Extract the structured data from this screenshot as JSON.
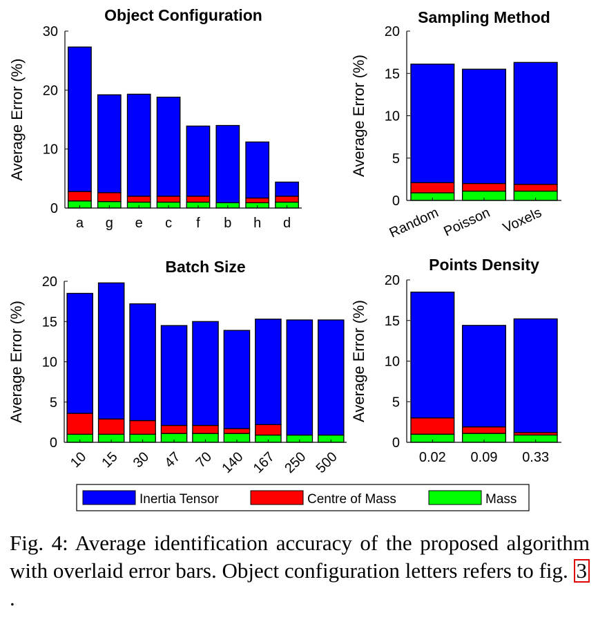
{
  "chart_data": [
    {
      "type": "bar",
      "stacked": true,
      "title": "Object Configuration",
      "ylabel": "Average Error (%)",
      "xlabel": "",
      "ylim": [
        0,
        30
      ],
      "yticks": [
        0,
        10,
        20,
        30
      ],
      "categories": [
        "a",
        "g",
        "e",
        "c",
        "f",
        "b",
        "h",
        "d"
      ],
      "series": [
        {
          "name": "Mass",
          "values": [
            1.2,
            1.1,
            1.0,
            1.0,
            1.0,
            0.9,
            0.9,
            1.0
          ]
        },
        {
          "name": "Centre of Mass",
          "values": [
            1.6,
            1.5,
            1.0,
            1.0,
            1.0,
            0.0,
            0.8,
            1.0
          ]
        },
        {
          "name": "Inertia Tensor",
          "values": [
            24.5,
            16.6,
            17.3,
            16.8,
            11.9,
            13.1,
            9.5,
            2.4
          ]
        }
      ]
    },
    {
      "type": "bar",
      "stacked": true,
      "title": "Sampling Method",
      "ylabel": "Average Error (%)",
      "xlabel": "",
      "ylim": [
        0,
        20
      ],
      "yticks": [
        0,
        5,
        10,
        15,
        20
      ],
      "tick_rotation": 25,
      "categories": [
        "Random",
        "Poisson",
        "Voxels"
      ],
      "series": [
        {
          "name": "Mass",
          "values": [
            0.9,
            1.1,
            1.1
          ]
        },
        {
          "name": "Centre of Mass",
          "values": [
            1.2,
            0.9,
            0.8
          ]
        },
        {
          "name": "Inertia Tensor",
          "values": [
            14.0,
            13.5,
            14.4
          ]
        }
      ]
    },
    {
      "type": "bar",
      "stacked": true,
      "title": "Batch Size",
      "ylabel": "Average Error (%)",
      "xlabel": "",
      "ylim": [
        0,
        20
      ],
      "yticks": [
        0,
        5,
        10,
        15,
        20
      ],
      "tick_rotation": 45,
      "categories": [
        "10",
        "15",
        "30",
        "47",
        "70",
        "140",
        "167",
        "250",
        "500"
      ],
      "series": [
        {
          "name": "Mass",
          "values": [
            1.0,
            1.0,
            1.0,
            1.1,
            1.1,
            1.1,
            0.9,
            0.9,
            0.9
          ]
        },
        {
          "name": "Centre of Mass",
          "values": [
            2.6,
            1.9,
            1.7,
            1.0,
            1.0,
            0.6,
            1.3,
            0.0,
            0.0
          ]
        },
        {
          "name": "Inertia Tensor",
          "values": [
            14.9,
            16.9,
            14.5,
            12.4,
            12.9,
            12.2,
            13.1,
            14.3,
            14.3
          ]
        }
      ]
    },
    {
      "type": "bar",
      "stacked": true,
      "title": "Points Density",
      "ylabel": "Average Error (%)",
      "xlabel": "",
      "ylim": [
        0,
        20
      ],
      "yticks": [
        0,
        5,
        10,
        15,
        20
      ],
      "categories": [
        "0.02",
        "0.09",
        "0.33"
      ],
      "series": [
        {
          "name": "Mass",
          "values": [
            1.0,
            1.1,
            0.9
          ]
        },
        {
          "name": "Centre of Mass",
          "values": [
            2.0,
            0.8,
            0.3
          ]
        },
        {
          "name": "Inertia Tensor",
          "values": [
            15.5,
            12.5,
            14.0
          ]
        }
      ]
    }
  ],
  "legend": {
    "items": [
      {
        "label": "Inertia Tensor",
        "color": "#0000ff"
      },
      {
        "label": "Centre of Mass",
        "color": "#ff0000"
      },
      {
        "label": "Mass",
        "color": "#00ff00"
      }
    ]
  },
  "colors": {
    "Inertia Tensor": "#0000ff",
    "Centre of Mass": "#ff0000",
    "Mass": "#00ff00"
  },
  "caption": {
    "text": "Fig. 4: Average identification accuracy of the proposed algorithm with overlaid error bars. Object configuration letters refers to fig. ",
    "ref": "3",
    "tail": "."
  }
}
